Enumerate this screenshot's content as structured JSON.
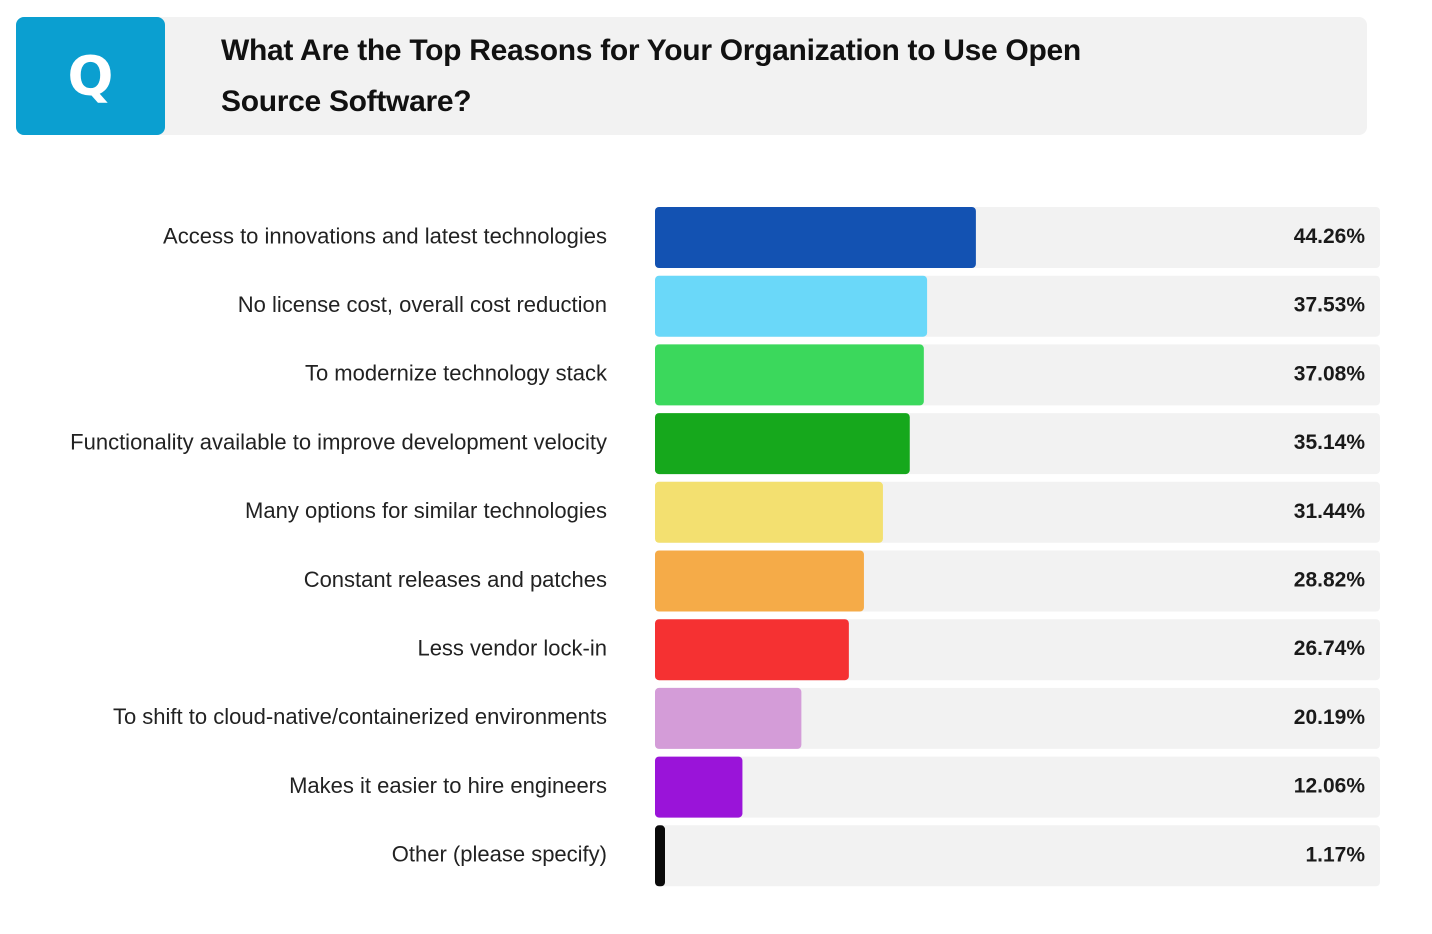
{
  "header": {
    "badge": "Q",
    "title": "What Are the Top Reasons for Your Organization to Use Open Source Software?"
  },
  "chart_data": {
    "type": "bar",
    "orientation": "horizontal",
    "title": "What Are the Top Reasons for Your Organization to Use Open Source Software?",
    "xlabel": "",
    "ylabel": "",
    "xlim": [
      0,
      100
    ],
    "grid": false,
    "unit": "%",
    "categories": [
      "Access to innovations and latest technologies",
      "No license cost, overall cost reduction",
      "To modernize technology stack",
      "Functionality available to improve development velocity",
      "Many options for similar technologies",
      "Constant releases and patches",
      "Less vendor lock-in",
      "To shift to cloud-native/containerized environments",
      "Makes it easier to hire engineers",
      "Other (please specify)"
    ],
    "values": [
      44.26,
      37.53,
      37.08,
      35.14,
      31.44,
      28.82,
      26.74,
      20.19,
      12.06,
      1.17
    ],
    "value_labels": [
      "44.26%",
      "37.53%",
      "37.08%",
      "35.14%",
      "31.44%",
      "28.82%",
      "26.74%",
      "20.19%",
      "12.06%",
      "1.17%"
    ],
    "colors": [
      "#1352b2",
      "#6ad8f9",
      "#3bd85c",
      "#16a81c",
      "#f3e070",
      "#f5ab48",
      "#f53132",
      "#d49cd8",
      "#9a14d9",
      "#0a0a0a"
    ],
    "track_color": "#f2f2f2"
  }
}
